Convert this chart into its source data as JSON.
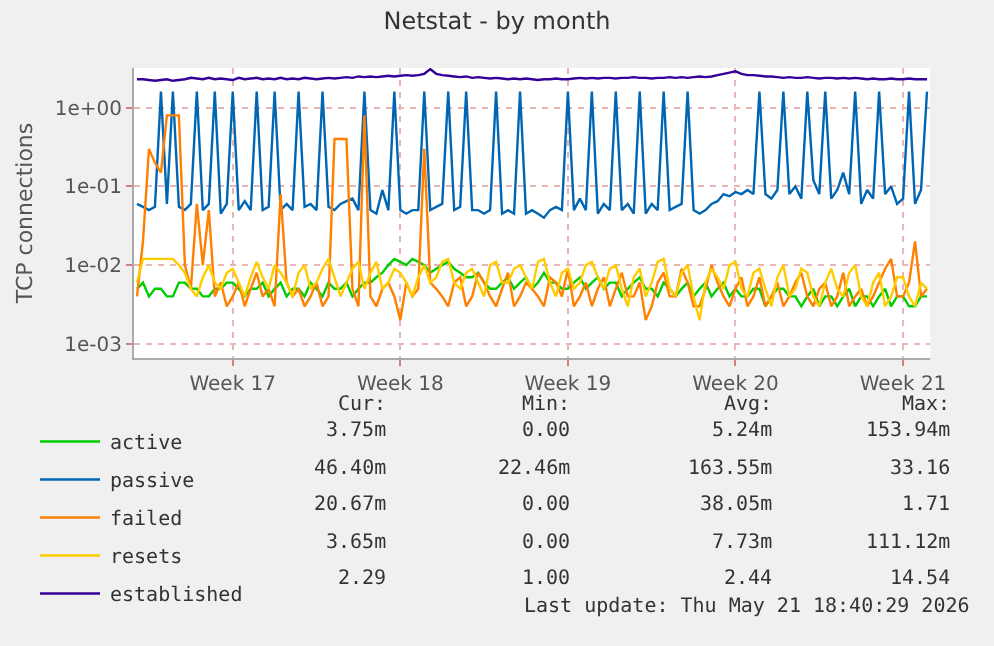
{
  "chart_data": {
    "type": "line",
    "title": "Netstat - by month",
    "ylabel": "TCP connections",
    "log": "y",
    "grid": true,
    "legend": "bottom left",
    "marker": "none",
    "line_style": "solid",
    "ylim": [
      0.00066,
      3.2
    ],
    "yticks": [
      {
        "value": 0.001,
        "label": "1e-03"
      },
      {
        "value": 0.01,
        "label": "1e-02"
      },
      {
        "value": 0.1,
        "label": "1e-01"
      },
      {
        "value": 1,
        "label": "1e+00"
      }
    ],
    "categories": [
      null,
      null,
      null,
      null,
      null,
      null,
      null,
      null,
      null,
      null,
      null,
      null,
      null,
      null,
      null,
      null,
      "Week 17",
      null,
      null,
      null,
      null,
      null,
      null,
      null,
      null,
      null,
      null,
      null,
      null,
      null,
      null,
      null,
      null,
      null,
      null,
      null,
      null,
      null,
      null,
      null,
      null,
      null,
      null,
      null,
      "Week 18",
      null,
      null,
      null,
      null,
      null,
      null,
      null,
      null,
      null,
      null,
      null,
      null,
      null,
      null,
      null,
      null,
      null,
      null,
      null,
      null,
      null,
      null,
      null,
      null,
      null,
      null,
      null,
      "Week 19",
      null,
      null,
      null,
      null,
      null,
      null,
      null,
      null,
      null,
      null,
      null,
      null,
      null,
      null,
      null,
      null,
      null,
      null,
      null,
      null,
      null,
      null,
      null,
      null,
      null,
      null,
      null,
      "Week 20",
      null,
      null,
      null,
      null,
      null,
      null,
      null,
      null,
      null,
      null,
      null,
      null,
      null,
      null,
      null,
      null,
      null,
      null,
      null,
      null,
      null,
      null,
      null,
      null,
      null,
      null,
      null,
      "Week 21",
      null,
      null,
      null,
      null
    ],
    "series": [
      {
        "name": "active",
        "color": "#00cc00",
        "values": [
          0.005,
          0.006,
          0.004,
          0.005,
          0.005,
          0.004,
          0.004,
          0.006,
          0.006,
          0.005,
          0.005,
          0.004,
          0.004,
          0.005,
          0.005,
          0.006,
          0.006,
          0.005,
          0.004,
          0.005,
          0.005,
          0.006,
          0.004,
          0.005,
          0.006,
          0.004,
          0.005,
          0.005,
          0.004,
          0.006,
          0.005,
          0.004,
          0.006,
          0.005,
          0.005,
          0.006,
          0.004,
          0.005,
          0.006,
          0.006,
          0.007,
          0.008,
          0.01,
          0.012,
          0.011,
          0.01,
          0.012,
          0.011,
          0.01,
          0.008,
          0.009,
          0.01,
          0.011,
          0.009,
          0.008,
          0.007,
          0.007,
          0.008,
          0.006,
          0.005,
          0.005,
          0.006,
          0.007,
          0.005,
          0.006,
          0.007,
          0.005,
          0.006,
          0.008,
          0.006,
          0.006,
          0.005,
          0.005,
          0.006,
          0.007,
          0.005,
          0.006,
          0.007,
          0.005,
          0.006,
          0.006,
          0.004,
          0.005,
          0.006,
          0.007,
          0.005,
          0.005,
          0.004,
          0.006,
          0.005,
          0.004,
          0.005,
          0.006,
          0.004,
          0.005,
          0.006,
          0.004,
          0.005,
          0.006,
          0.004,
          0.005,
          0.004,
          0.004,
          0.005,
          0.005,
          0.003,
          0.004,
          0.005,
          0.005,
          0.004,
          0.004,
          0.003,
          0.004,
          0.005,
          0.003,
          0.004,
          0.004,
          0.003,
          0.004,
          0.005,
          0.003,
          0.004,
          0.004,
          0.003,
          0.004,
          0.005,
          0.003,
          0.004,
          0.004,
          0.003,
          0.003,
          0.004,
          0.004
        ]
      },
      {
        "name": "passive",
        "color": "#0066b3",
        "values": [
          0.06,
          0.055,
          0.05,
          0.055,
          1.6,
          0.06,
          1.6,
          0.055,
          0.05,
          0.06,
          1.6,
          0.05,
          0.06,
          1.6,
          0.045,
          0.06,
          1.6,
          0.05,
          0.065,
          0.05,
          1.6,
          0.05,
          0.055,
          1.6,
          0.05,
          0.06,
          0.05,
          1.6,
          0.055,
          0.06,
          0.05,
          1.6,
          0.055,
          0.05,
          0.06,
          0.065,
          0.07,
          0.05,
          1.6,
          0.05,
          0.045,
          0.09,
          0.05,
          1.6,
          0.05,
          0.045,
          0.05,
          0.05,
          1.6,
          0.05,
          0.055,
          0.06,
          1.6,
          0.05,
          0.055,
          1.6,
          0.05,
          0.05,
          0.045,
          0.05,
          1.6,
          0.045,
          0.05,
          0.045,
          1.6,
          0.045,
          0.05,
          0.045,
          0.04,
          0.05,
          0.055,
          0.05,
          1.6,
          0.05,
          0.07,
          0.05,
          1.6,
          0.045,
          0.06,
          0.05,
          1.6,
          0.05,
          0.06,
          0.045,
          1.6,
          0.045,
          0.06,
          0.05,
          1.6,
          0.05,
          0.055,
          0.06,
          1.6,
          0.05,
          0.045,
          0.05,
          0.06,
          0.065,
          0.08,
          0.075,
          0.085,
          0.08,
          0.09,
          0.08,
          1.6,
          0.08,
          0.07,
          0.09,
          1.6,
          0.08,
          0.1,
          0.07,
          1.6,
          0.12,
          0.08,
          1.6,
          0.07,
          0.09,
          0.15,
          0.08,
          1.6,
          0.06,
          0.09,
          0.07,
          1.6,
          0.08,
          0.1,
          0.06,
          0.07,
          1.6,
          0.06,
          0.09,
          1.6
        ]
      },
      {
        "name": "failed",
        "color": "#ff8000",
        "values": [
          0.004,
          0.02,
          0.3,
          0.2,
          0.15,
          0.8,
          0.8,
          0.8,
          0.01,
          0.005,
          0.06,
          0.01,
          0.05,
          0.004,
          0.006,
          0.003,
          0.004,
          0.006,
          0.003,
          0.005,
          0.008,
          0.004,
          0.005,
          0.003,
          0.08,
          0.006,
          0.004,
          0.005,
          0.003,
          0.004,
          0.006,
          0.003,
          0.004,
          0.4,
          0.4,
          0.4,
          0.005,
          0.003,
          0.8,
          0.004,
          0.003,
          0.005,
          0.006,
          0.004,
          0.002,
          0.006,
          0.004,
          0.005,
          0.3,
          0.006,
          0.005,
          0.004,
          0.003,
          0.006,
          0.007,
          0.003,
          0.004,
          0.008,
          0.006,
          0.004,
          0.003,
          0.005,
          0.008,
          0.003,
          0.004,
          0.006,
          0.005,
          0.004,
          0.003,
          0.007,
          0.006,
          0.004,
          0.009,
          0.003,
          0.004,
          0.006,
          0.003,
          0.005,
          0.007,
          0.003,
          0.005,
          0.008,
          0.004,
          0.004,
          0.006,
          0.002,
          0.003,
          0.006,
          0.008,
          0.004,
          0.004,
          0.009,
          0.006,
          0.003,
          0.003,
          0.005,
          0.01,
          0.006,
          0.004,
          0.003,
          0.005,
          0.007,
          0.003,
          0.004,
          0.007,
          0.003,
          0.004,
          0.006,
          0.003,
          0.004,
          0.006,
          0.008,
          0.004,
          0.003,
          0.005,
          0.006,
          0.003,
          0.004,
          0.008,
          0.003,
          0.004,
          0.005,
          0.003,
          0.004,
          0.006,
          0.009,
          0.012,
          0.004,
          0.004,
          0.006,
          0.02,
          0.004,
          0.005
        ]
      },
      {
        "name": "resets",
        "color": "#ffcc00",
        "values": [
          0.006,
          0.012,
          0.012,
          0.012,
          0.012,
          0.012,
          0.012,
          0.01,
          0.008,
          0.005,
          0.004,
          0.007,
          0.01,
          0.006,
          0.005,
          0.008,
          0.009,
          0.006,
          0.004,
          0.007,
          0.011,
          0.007,
          0.005,
          0.01,
          0.008,
          0.006,
          0.004,
          0.008,
          0.01,
          0.005,
          0.006,
          0.009,
          0.012,
          0.007,
          0.004,
          0.006,
          0.009,
          0.011,
          0.005,
          0.008,
          0.011,
          0.005,
          0.006,
          0.009,
          0.008,
          0.006,
          0.004,
          0.007,
          0.01,
          0.006,
          0.007,
          0.011,
          0.012,
          0.006,
          0.005,
          0.008,
          0.009,
          0.006,
          0.004,
          0.01,
          0.011,
          0.006,
          0.006,
          0.009,
          0.01,
          0.007,
          0.005,
          0.011,
          0.012,
          0.006,
          0.004,
          0.008,
          0.009,
          0.005,
          0.006,
          0.01,
          0.011,
          0.007,
          0.005,
          0.009,
          0.01,
          0.005,
          0.003,
          0.007,
          0.009,
          0.004,
          0.006,
          0.011,
          0.012,
          0.005,
          0.004,
          0.008,
          0.01,
          0.004,
          0.002,
          0.006,
          0.009,
          0.007,
          0.005,
          0.01,
          0.011,
          0.005,
          0.004,
          0.008,
          0.009,
          0.005,
          0.003,
          0.007,
          0.01,
          0.004,
          0.005,
          0.009,
          0.008,
          0.004,
          0.003,
          0.006,
          0.009,
          0.005,
          0.004,
          0.008,
          0.01,
          0.004,
          0.003,
          0.006,
          0.008,
          0.003,
          0.004,
          0.007,
          0.007,
          0.004,
          0.003,
          0.006,
          0.005
        ]
      },
      {
        "name": "established",
        "color": "#330099",
        "values": [
          2.3,
          2.3,
          2.25,
          2.2,
          2.25,
          2.3,
          2.2,
          2.25,
          2.3,
          2.4,
          2.35,
          2.3,
          2.4,
          2.3,
          2.35,
          2.3,
          2.25,
          2.4,
          2.3,
          2.35,
          2.4,
          2.3,
          2.35,
          2.3,
          2.4,
          2.3,
          2.35,
          2.3,
          2.4,
          2.35,
          2.3,
          2.35,
          2.4,
          2.35,
          2.4,
          2.45,
          2.4,
          2.5,
          2.45,
          2.5,
          2.45,
          2.5,
          2.55,
          2.5,
          2.55,
          2.6,
          2.55,
          2.6,
          2.7,
          3.1,
          2.7,
          2.6,
          2.55,
          2.5,
          2.45,
          2.5,
          2.4,
          2.45,
          2.4,
          2.35,
          2.4,
          2.35,
          2.3,
          2.35,
          2.3,
          2.35,
          2.3,
          2.25,
          2.3,
          2.3,
          2.35,
          2.3,
          2.3,
          2.35,
          2.4,
          2.35,
          2.4,
          2.35,
          2.4,
          2.4,
          2.35,
          2.4,
          2.4,
          2.45,
          2.4,
          2.4,
          2.35,
          2.4,
          2.4,
          2.45,
          2.4,
          2.45,
          2.4,
          2.45,
          2.5,
          2.45,
          2.5,
          2.6,
          2.7,
          2.8,
          2.9,
          2.7,
          2.6,
          2.6,
          2.55,
          2.5,
          2.5,
          2.45,
          2.4,
          2.45,
          2.4,
          2.4,
          2.45,
          2.4,
          2.35,
          2.4,
          2.4,
          2.35,
          2.4,
          2.35,
          2.4,
          2.35,
          2.3,
          2.35,
          2.3,
          2.3,
          2.35,
          2.3,
          2.3,
          2.35,
          2.3,
          2.3,
          2.3
        ]
      }
    ],
    "annotations": [
      "Cur:",
      "Min:",
      "Avg:",
      "Max:",
      "3.75m",
      "0.00",
      "5.24m",
      "153.94m",
      "46.40m",
      "22.46m",
      "163.55m",
      "33.16",
      "20.67m",
      "0.00",
      "38.05m",
      "1.71",
      "3.65m",
      "0.00",
      "7.73m",
      "111.12m",
      "2.29",
      "1.00",
      "2.44",
      "14.54",
      "Last update: Thu May 21 18:40:29 2026"
    ]
  }
}
